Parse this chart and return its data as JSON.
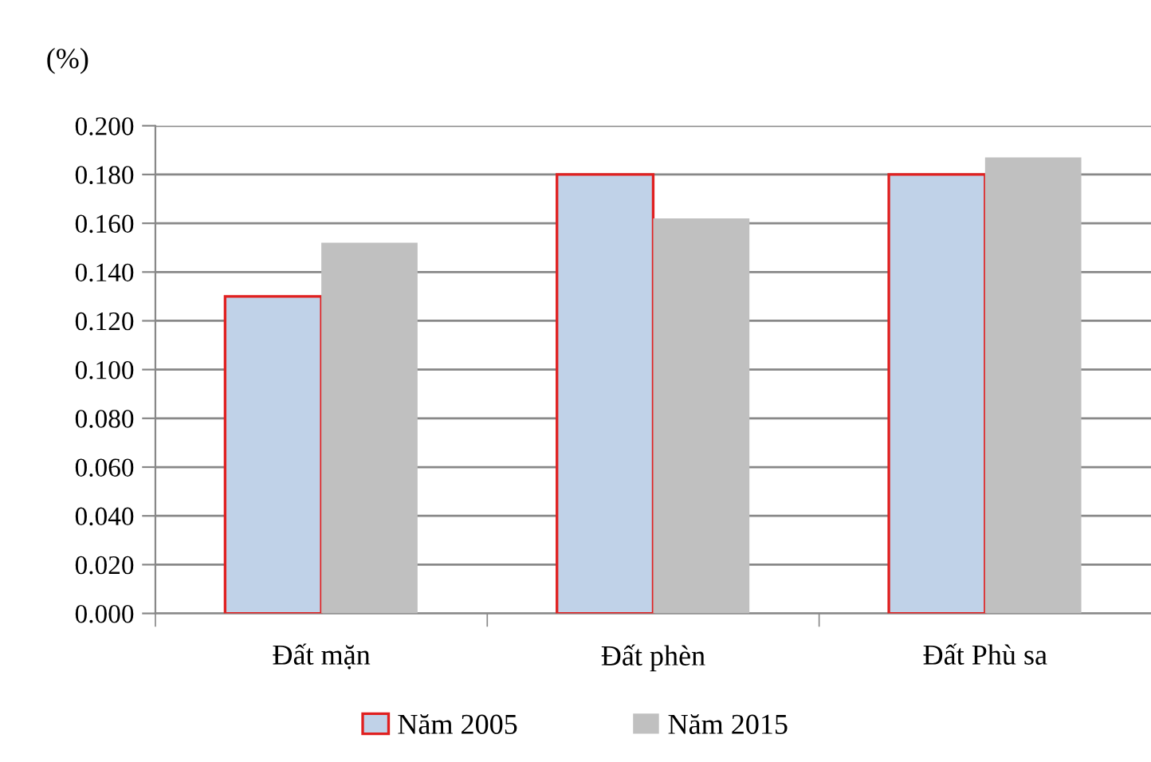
{
  "chart_data": {
    "type": "bar",
    "ylabel": "(%)",
    "categories": [
      "Đất mặn",
      "Đất phèn",
      "Đất Phù sa"
    ],
    "series": [
      {
        "name": "Năm 2005",
        "color": "#c0d2e8",
        "values": [
          0.13,
          0.18,
          0.18
        ]
      },
      {
        "name": "Năm 2015",
        "color": "#c0c0c0",
        "values": [
          0.152,
          0.162,
          0.187
        ]
      }
    ],
    "ylim": [
      0,
      0.2
    ],
    "yticks": [
      {
        "value": 0,
        "label": "0.000"
      },
      {
        "value": 0.02,
        "label": "0.020"
      },
      {
        "value": 0.04,
        "label": "0.040"
      },
      {
        "value": 0.06,
        "label": "0.060"
      },
      {
        "value": 0.08,
        "label": "0.080"
      },
      {
        "value": 0.1,
        "label": "0.100"
      },
      {
        "value": 0.12,
        "label": "0.120"
      },
      {
        "value": 0.14,
        "label": "0.140"
      },
      {
        "value": 0.16,
        "label": "0.160"
      },
      {
        "value": 0.18,
        "label": "0.180"
      },
      {
        "value": 0.2,
        "label": "0.200"
      }
    ],
    "grid": "y",
    "legend": "bottom"
  }
}
